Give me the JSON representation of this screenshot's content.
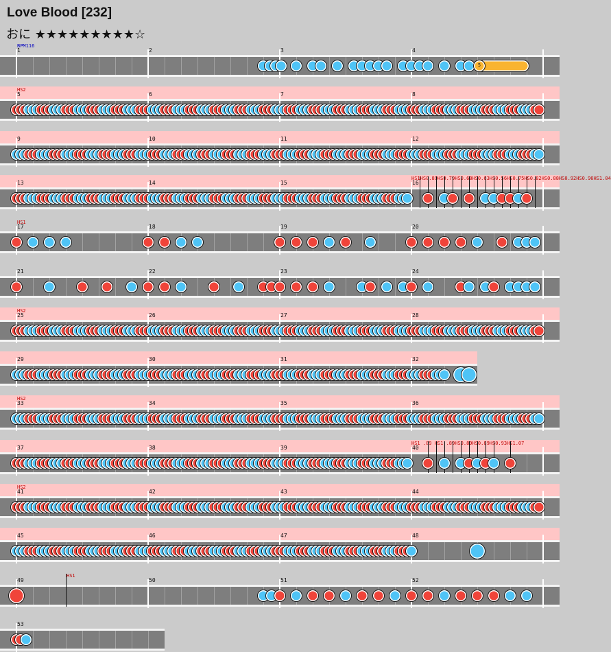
{
  "song": {
    "title": "Love Blood [232]",
    "difficulty": "おに",
    "stars": "★★★★★★★★★☆",
    "level": 9
  },
  "colors": {
    "don": "#f0443a",
    "ka": "#4fc4f6",
    "roll": "#f9b430",
    "scroll_band": "#ffc6c6",
    "lane": "#7e7e7e"
  },
  "rows": [
    {
      "measures": [
        1,
        2,
        3,
        4
      ],
      "pink": false,
      "event": "BPM116",
      "event_type": "bpm",
      "pattern": "sparse",
      "roll_label": "5"
    },
    {
      "measures": [
        5,
        6,
        7,
        8
      ],
      "pink": true,
      "event": "HS2",
      "pattern": "stream-rb"
    },
    {
      "measures": [
        9,
        10,
        11,
        12
      ],
      "pink": true,
      "event": "",
      "pattern": "stream-br"
    },
    {
      "measures": [
        13,
        14,
        15,
        16
      ],
      "pink": true,
      "event": "",
      "pattern": "stream-r",
      "mid_events": "HS1HS0.89HS0.79HS0.68HS0.63HS0.56HS0.75HS0.82HS0.88HS0.92HS0.96HS1.04"
    },
    {
      "measures": [
        17,
        18,
        19,
        20
      ],
      "pink": false,
      "event": "HS1",
      "pattern": "sparse-a"
    },
    {
      "measures": [
        21,
        22,
        23,
        24
      ],
      "pink": false,
      "event": "",
      "pattern": "sparse-b"
    },
    {
      "measures": [
        25,
        26,
        27,
        28
      ],
      "pink": true,
      "event": "HS2",
      "pattern": "stream-rb"
    },
    {
      "measures": [
        29,
        30,
        31,
        32
      ],
      "pink": true,
      "event": "",
      "pattern": "stream-b",
      "short_width": 696
    },
    {
      "measures": [
        33,
        34,
        35,
        36
      ],
      "pink": true,
      "event": "HS2",
      "pattern": "stream-br"
    },
    {
      "measures": [
        37,
        38,
        39,
        40
      ],
      "pink": true,
      "event": "",
      "pattern": "stream-r",
      "mid_events": "HS1 .89 HS1 .89HS0.89HS0.89HS0.93HS1.07"
    },
    {
      "measures": [
        41,
        42,
        43,
        44
      ],
      "pink": true,
      "event": "HS2",
      "pattern": "stream-rb"
    },
    {
      "measures": [
        45,
        46,
        47,
        48
      ],
      "pink": true,
      "event": "",
      "pattern": "stream-b"
    },
    {
      "measures": [
        49,
        50,
        51,
        52
      ],
      "pink": false,
      "event": "",
      "pattern": "mixed",
      "side_event": "HS1"
    },
    {
      "measures": [
        53
      ],
      "pink": false,
      "event": "",
      "pattern": "end"
    }
  ]
}
